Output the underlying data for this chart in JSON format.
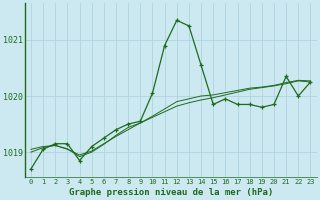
{
  "title": "Graphe pression niveau de la mer (hPa)",
  "background_color": "#cce8f0",
  "grid_color": "#aacfdc",
  "line_color": "#1e6b1e",
  "x_values": [
    0,
    1,
    2,
    3,
    4,
    5,
    6,
    7,
    8,
    9,
    10,
    11,
    12,
    13,
    14,
    15,
    16,
    17,
    18,
    19,
    20,
    21,
    22,
    23
  ],
  "series1": [
    1018.7,
    1019.05,
    1019.15,
    1019.15,
    1018.85,
    1019.1,
    1019.25,
    1019.4,
    1019.5,
    1019.55,
    1020.05,
    1020.9,
    1021.35,
    1021.25,
    1020.55,
    1019.85,
    1019.95,
    1019.85,
    1019.85,
    1019.8,
    1019.85,
    1020.35,
    1020.0,
    1020.25
  ],
  "series2": [
    1019.05,
    1019.1,
    1019.12,
    1019.05,
    1018.95,
    1019.02,
    1019.15,
    1019.28,
    1019.4,
    1019.52,
    1019.62,
    1019.72,
    1019.82,
    1019.88,
    1019.93,
    1019.97,
    1020.02,
    1020.07,
    1020.12,
    1020.15,
    1020.18,
    1020.22,
    1020.27,
    1020.25
  ],
  "series3": [
    1019.0,
    1019.08,
    1019.12,
    1019.06,
    1018.92,
    1019.0,
    1019.14,
    1019.3,
    1019.44,
    1019.52,
    1019.64,
    1019.77,
    1019.9,
    1019.95,
    1020.0,
    1020.02,
    1020.06,
    1020.1,
    1020.14,
    1020.16,
    1020.19,
    1020.24,
    1020.28,
    1020.27
  ],
  "ylim": [
    1018.55,
    1021.65
  ],
  "yticks": [
    1019,
    1020,
    1021
  ],
  "xlim": [
    -0.5,
    23.5
  ]
}
